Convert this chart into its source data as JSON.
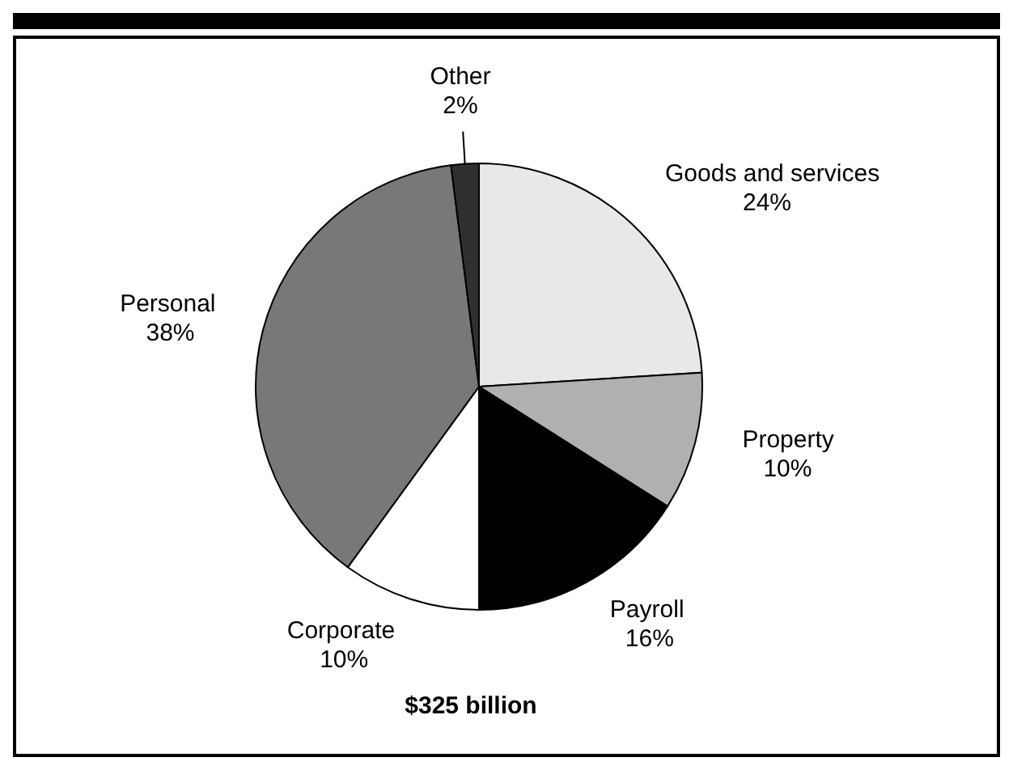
{
  "chart_data": {
    "type": "pie",
    "categories": [
      "Goods and services",
      "Property",
      "Payroll",
      "Corporate",
      "Personal",
      "Other"
    ],
    "values": [
      24,
      10,
      16,
      10,
      38,
      2
    ],
    "value_labels": [
      "24%",
      "10%",
      "16%",
      "10%",
      "38%",
      "2%"
    ],
    "colors": [
      "#e8e8e8",
      "#b0b0b0",
      "#000000",
      "#ffffff",
      "#787878",
      "#303030"
    ],
    "annotations": [
      "$325 billion"
    ]
  }
}
